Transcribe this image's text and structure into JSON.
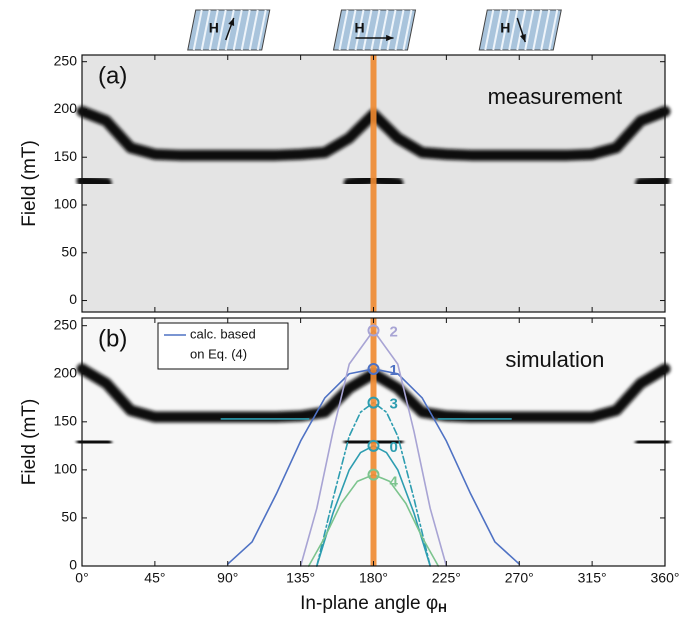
{
  "icons": [
    {
      "label": "H"
    },
    {
      "label": "H"
    },
    {
      "label": "H"
    }
  ],
  "chart_data": [
    {
      "type": "line",
      "panel_label": "(a)",
      "annotation": "measurement",
      "ylabel": "Field (mT)",
      "xlim": [
        0,
        360
      ],
      "ylim": [
        -12,
        257
      ],
      "yticks": [
        0,
        50,
        100,
        150,
        200,
        250
      ],
      "marker_x": 180,
      "marker_color": "#f08a30",
      "background": "#e4e4e4",
      "series": [
        {
          "color": "#111111",
          "x": [
            0,
            15,
            30,
            45,
            60,
            75,
            90,
            105,
            120,
            135,
            150,
            165,
            180,
            195,
            210,
            225,
            240,
            255,
            270,
            285,
            300,
            315,
            330,
            345,
            360
          ],
          "values": [
            198,
            188,
            160,
            153,
            152,
            152,
            152,
            152,
            152,
            153,
            155,
            170,
            195,
            170,
            155,
            153,
            152,
            152,
            152,
            152,
            152,
            153,
            160,
            188,
            198
          ]
        },
        {
          "color": "#111111",
          "x": [
            0,
            15,
            30,
            45,
            60,
            75,
            90,
            105,
            120,
            135,
            150,
            165,
            180,
            195,
            210,
            225,
            240,
            255,
            270,
            285,
            300,
            315,
            330,
            345,
            360
          ],
          "values": [
            125,
            123,
            null,
            null,
            null,
            null,
            null,
            null,
            null,
            null,
            null,
            123,
            127,
            123,
            null,
            null,
            null,
            null,
            null,
            null,
            null,
            null,
            null,
            123,
            125
          ]
        }
      ]
    },
    {
      "type": "line",
      "panel_label": "(b)",
      "annotation": "simulation",
      "ylabel": "Field (mT)",
      "xlabel": "In-plane angle φ",
      "xlabel_sub": "H",
      "xlim": [
        0,
        360
      ],
      "ylim": [
        0,
        258
      ],
      "yticks": [
        0,
        50,
        100,
        150,
        200,
        250
      ],
      "xticks": [
        {
          "value": 0,
          "label": "0°"
        },
        {
          "value": 45,
          "label": "45°"
        },
        {
          "value": 90,
          "label": "90°"
        },
        {
          "value": 135,
          "label": "135°"
        },
        {
          "value": 180,
          "label": "180°"
        },
        {
          "value": 225,
          "label": "225°"
        },
        {
          "value": 270,
          "label": "270°"
        },
        {
          "value": 315,
          "label": "315°"
        },
        {
          "value": 360,
          "label": "360°"
        }
      ],
      "marker_x": 180,
      "marker_color": "#f08a30",
      "background": "#f7f7f7",
      "legend": {
        "lines": [
          "calc. based",
          "on Eq. (4)"
        ],
        "color": "#4f72c4"
      },
      "series": [
        {
          "color": "#111111",
          "x": [
            0,
            15,
            30,
            45,
            60,
            75,
            90,
            105,
            120,
            135,
            150,
            165,
            180,
            195,
            210,
            225,
            240,
            255,
            270,
            285,
            300,
            315,
            330,
            345,
            360
          ],
          "values": [
            205,
            190,
            162,
            155,
            155,
            155,
            155,
            155,
            155,
            156,
            160,
            185,
            200,
            185,
            160,
            156,
            155,
            155,
            155,
            155,
            155,
            155,
            162,
            190,
            205
          ]
        },
        {
          "color": "#111111",
          "x": [
            0,
            15,
            30,
            45,
            60,
            75,
            90,
            105,
            120,
            135,
            150,
            165,
            180,
            195,
            210,
            225,
            240,
            255,
            270,
            285,
            300,
            315,
            330,
            345,
            360
          ],
          "values": [
            130,
            128,
            null,
            null,
            null,
            null,
            null,
            null,
            null,
            null,
            null,
            130,
            130,
            130,
            null,
            null,
            null,
            null,
            null,
            null,
            null,
            null,
            null,
            128,
            130
          ]
        },
        {
          "color": "#4f72c4",
          "label": "1",
          "x": [
            90,
            105,
            120,
            135,
            150,
            165,
            180,
            195,
            210,
            225,
            240,
            255,
            270
          ],
          "values": [
            2,
            25,
            75,
            130,
            175,
            200,
            205,
            200,
            175,
            130,
            75,
            25,
            2
          ]
        },
        {
          "color": "#a8a4d4",
          "label": "2",
          "x": [
            135,
            145,
            155,
            165,
            180,
            195,
            205,
            215,
            225
          ],
          "values": [
            0,
            60,
            140,
            210,
            245,
            210,
            140,
            60,
            0
          ]
        },
        {
          "color": "#2d9db0",
          "label": "3",
          "dashed": true,
          "x": [
            145,
            155,
            165,
            172,
            180,
            188,
            195,
            205,
            215
          ],
          "values": [
            0,
            70,
            135,
            160,
            170,
            160,
            135,
            70,
            0
          ]
        },
        {
          "color": "#2d9db0",
          "label": "0",
          "x": [
            145,
            155,
            165,
            172,
            180,
            188,
            195,
            205,
            215
          ],
          "values": [
            0,
            55,
            100,
            118,
            125,
            118,
            100,
            55,
            0
          ]
        },
        {
          "color": "#7cc48e",
          "label": "4",
          "x": [
            140,
            150,
            160,
            170,
            180,
            190,
            200,
            210,
            220
          ],
          "values": [
            0,
            30,
            65,
            88,
            95,
            88,
            65,
            30,
            0
          ]
        },
        {
          "color": "#2d9db0",
          "x": [
            86,
            140,
            180,
            220,
            265
          ],
          "values": [
            153,
            153,
            null,
            153,
            153
          ]
        }
      ]
    }
  ]
}
